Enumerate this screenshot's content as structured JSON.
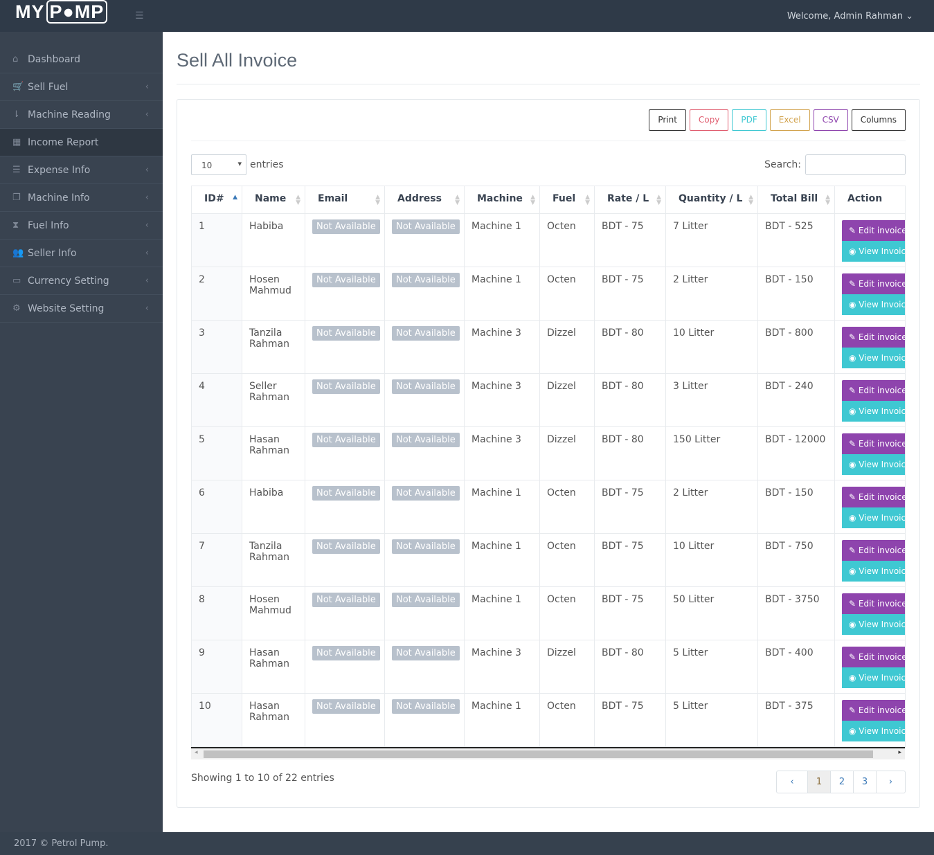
{
  "header": {
    "logo": "MYPUMP",
    "welcome": "Welcome, Admin Rahman"
  },
  "sidebar": {
    "items": [
      {
        "label": "Dashboard",
        "icon": "home-icon",
        "chev": false
      },
      {
        "label": "Sell Fuel",
        "icon": "cart-icon",
        "chev": true
      },
      {
        "label": "Machine Reading",
        "icon": "sort-icon",
        "chev": true
      },
      {
        "label": "Income Report",
        "icon": "calendar-icon",
        "chev": false,
        "active": true
      },
      {
        "label": "Expense Info",
        "icon": "server-icon",
        "chev": true
      },
      {
        "label": "Machine Info",
        "icon": "copy-icon",
        "chev": true
      },
      {
        "label": "Fuel Info",
        "icon": "hourglass-icon",
        "chev": true
      },
      {
        "label": "Seller Info",
        "icon": "users-icon",
        "chev": true
      },
      {
        "label": "Currency Setting",
        "icon": "credit-card-icon",
        "chev": true
      },
      {
        "label": "Website Setting",
        "icon": "gears-icon",
        "chev": true
      }
    ]
  },
  "page": {
    "title": "Sell All Invoice"
  },
  "toolbar": {
    "buttons": [
      {
        "label": "Print",
        "color": "#333333"
      },
      {
        "label": "Copy",
        "color": "#e05d6f"
      },
      {
        "label": "PDF",
        "color": "#3fc8d2"
      },
      {
        "label": "Excel",
        "color": "#d2a34e"
      },
      {
        "label": "CSV",
        "color": "#8e44ad"
      },
      {
        "label": "Columns",
        "color": "#333333"
      }
    ]
  },
  "length": {
    "value": "10",
    "label": "entries"
  },
  "search": {
    "label": "Search:",
    "value": ""
  },
  "table": {
    "columns": [
      "ID#",
      "Name",
      "Email",
      "Address",
      "Machine",
      "Fuel",
      "Rate / L",
      "Quantity / L",
      "Total Bill",
      "Action"
    ],
    "rows": [
      [
        "1",
        "Habiba",
        "Not Available",
        "Not Available",
        "Machine 1",
        "Octen",
        "BDT - 75",
        "7 Litter",
        "BDT - 525"
      ],
      [
        "2",
        "Hosen Mahmud",
        "Not Available",
        "Not Available",
        "Machine 1",
        "Octen",
        "BDT - 75",
        "2 Litter",
        "BDT - 150"
      ],
      [
        "3",
        "Tanzila Rahman",
        "Not Available",
        "Not Available",
        "Machine 3",
        "Dizzel",
        "BDT - 80",
        "10 Litter",
        "BDT - 800"
      ],
      [
        "4",
        "Seller Rahman",
        "Not Available",
        "Not Available",
        "Machine 3",
        "Dizzel",
        "BDT - 80",
        "3 Litter",
        "BDT - 240"
      ],
      [
        "5",
        "Hasan Rahman",
        "Not Available",
        "Not Available",
        "Machine 3",
        "Dizzel",
        "BDT - 80",
        "150 Litter",
        "BDT - 12000"
      ],
      [
        "6",
        "Habiba",
        "Not Available",
        "Not Available",
        "Machine 1",
        "Octen",
        "BDT - 75",
        "2 Litter",
        "BDT - 150"
      ],
      [
        "7",
        "Tanzila Rahman",
        "Not Available",
        "Not Available",
        "Machine 1",
        "Octen",
        "BDT - 75",
        "10 Litter",
        "BDT - 750"
      ],
      [
        "8",
        "Hosen Mahmud",
        "Not Available",
        "Not Available",
        "Machine 1",
        "Octen",
        "BDT - 75",
        "50 Litter",
        "BDT - 3750"
      ],
      [
        "9",
        "Hasan Rahman",
        "Not Available",
        "Not Available",
        "Machine 3",
        "Dizzel",
        "BDT - 80",
        "5 Litter",
        "BDT - 400"
      ],
      [
        "10",
        "Hasan Rahman",
        "Not Available",
        "Not Available",
        "Machine 1",
        "Octen",
        "BDT - 75",
        "5 Litter",
        "BDT - 375"
      ]
    ],
    "edit_label": "Edit invoice",
    "view_label": "View Invoice"
  },
  "info": "Showing 1 to 10 of 22 entries",
  "pagination": {
    "prev": "‹",
    "pages": [
      "1",
      "2",
      "3"
    ],
    "current": "1",
    "next": "›"
  },
  "footer": "2017 © Petrol Pump."
}
